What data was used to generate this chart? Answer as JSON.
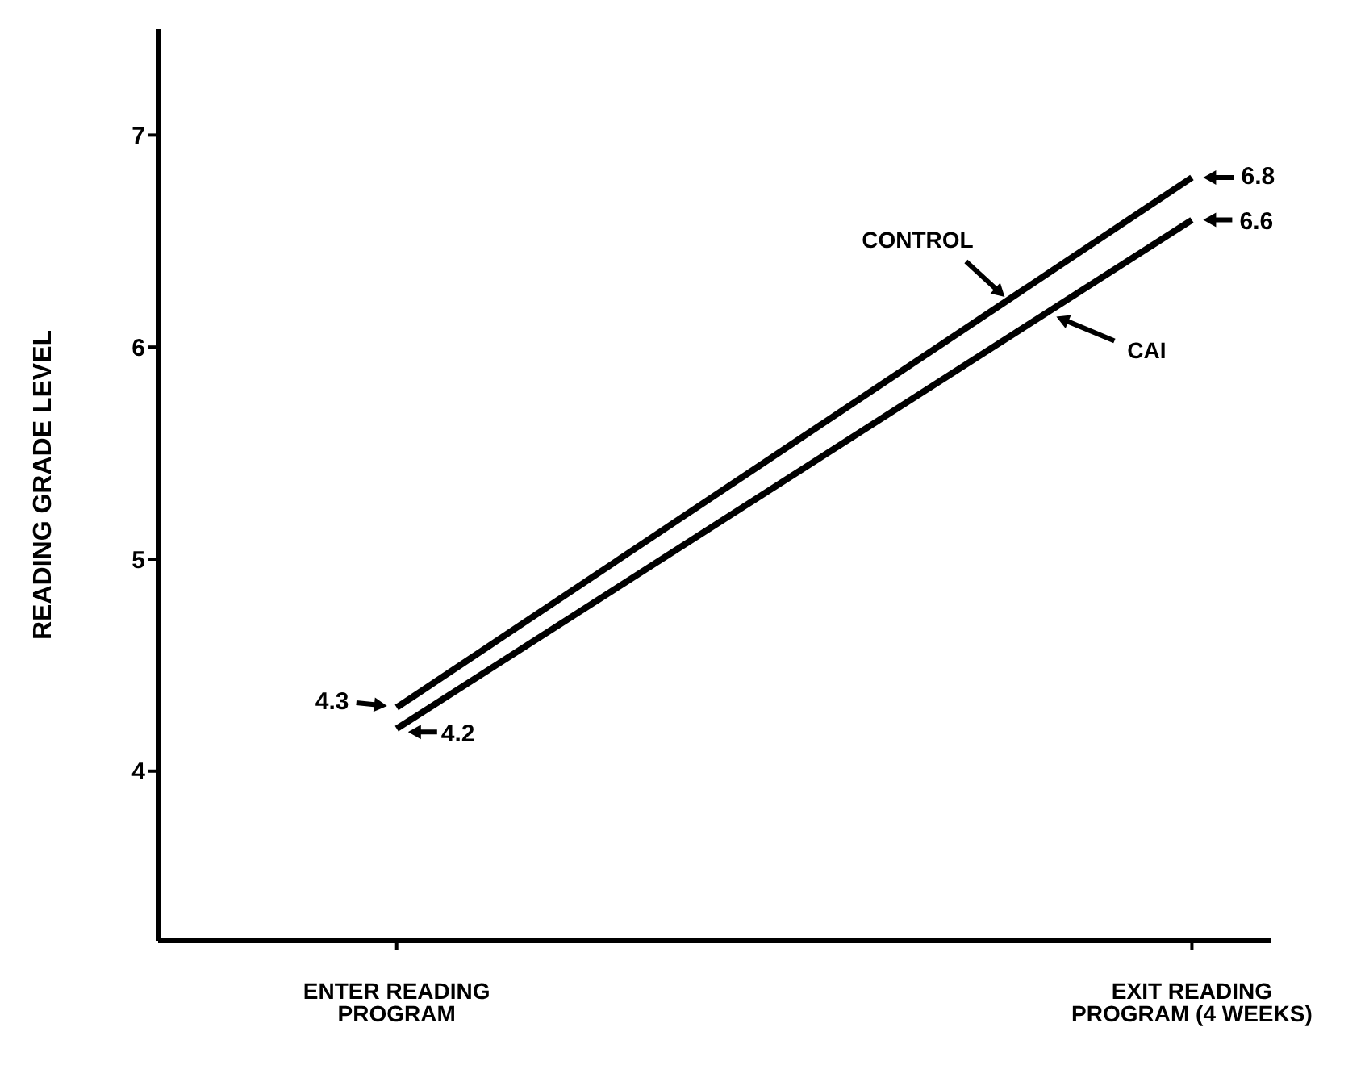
{
  "chart_data": {
    "type": "line",
    "ylabel": "READING GRADE LEVEL",
    "categories": [
      "ENTER READING PROGRAM",
      "EXIT READING PROGRAM (4 WEEKS)"
    ],
    "series": [
      {
        "name": "CONTROL",
        "color": "#000000",
        "values": [
          4.3,
          6.8
        ]
      },
      {
        "name": "CAI",
        "color": "#000000",
        "values": [
          4.2,
          6.6
        ]
      }
    ],
    "ylim": [
      3.2,
      7.5
    ],
    "yticks": [
      4,
      5,
      6,
      7
    ],
    "data_labels": true,
    "grid": false,
    "legend": false,
    "marker": "none",
    "line_style": "solid"
  }
}
